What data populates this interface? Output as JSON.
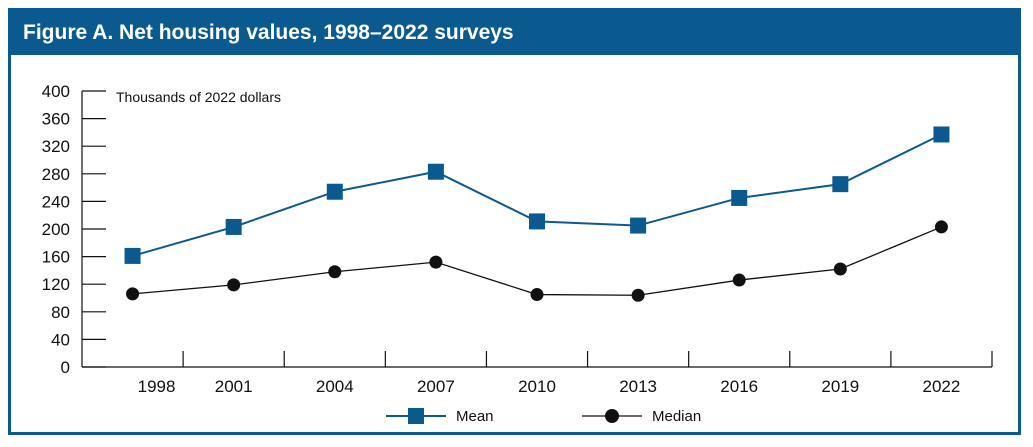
{
  "title": "Figure A. Net housing values, 1998–2022 surveys",
  "colors": {
    "mean": "#0b5a8f",
    "median": "#111111",
    "frame": "#0b5a8f"
  },
  "chart_data": {
    "type": "line",
    "title": "Figure A. Net housing values, 1998–2022 surveys",
    "ylabel": "Thousands of 2022 dollars",
    "xlabel": "",
    "categories": [
      "1998",
      "2001",
      "2004",
      "2007",
      "2010",
      "2013",
      "2016",
      "2019",
      "2022"
    ],
    "y_ticks": [
      "0",
      "40",
      "80",
      "120",
      "160",
      "200",
      "240",
      "280",
      "320",
      "360",
      "400"
    ],
    "ylim": [
      0,
      400
    ],
    "grid": false,
    "legend_position": "bottom",
    "series": [
      {
        "name": "Mean",
        "marker": "square",
        "values": [
          161,
          203,
          254,
          283,
          211,
          205,
          245,
          265,
          337
        ]
      },
      {
        "name": "Median",
        "marker": "circle",
        "values": [
          106,
          119,
          138,
          152,
          105,
          104,
          126,
          142,
          203
        ]
      }
    ]
  }
}
